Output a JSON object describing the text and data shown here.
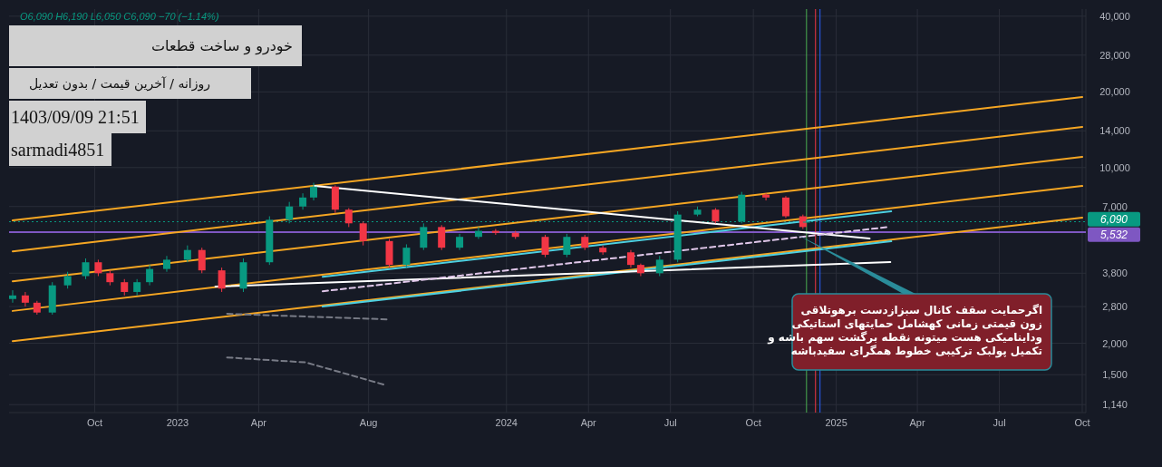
{
  "chart_data": {
    "type": "candlestick",
    "title": "خودرو و ساخت قطعات",
    "subtitle": "روزانه / آخرین قیمت / بدون تعدیل",
    "annotations": [
      "O6,090  H6,190  L6,050  C6,090  −70 (−1.14%)",
      "1403/09/09 21:51",
      "sarmadi4851",
      "اگرحمایت سقف کانال سبزازدست برهوتلاقی",
      "زون قیمتی زمانی کهشامل حمایتهای استاتیکی",
      "وداینامیکی هست میتونه نقطه برگشت سهم باشه و",
      "تکمیل پولبک ترکیبی خطوط همگرای سفیدباشه"
    ],
    "x": [
      "2022-07-02",
      "2022-07-16",
      "2022-07-29",
      "2022-08-15",
      "2022-09-01",
      "2022-09-21",
      "2022-10-05",
      "2022-10-18",
      "2022-11-03",
      "2022-11-17",
      "2022-12-01",
      "2022-12-20",
      "2023-01-12",
      "2023-01-28",
      "2023-02-19",
      "2023-03-15",
      "2023-04-13",
      "2023-05-05",
      "2023-05-20",
      "2023-06-01",
      "2023-06-25",
      "2023-07-10",
      "2023-07-26",
      "2023-08-24",
      "2023-09-12",
      "2023-10-01",
      "2023-10-21",
      "2023-11-10",
      "2023-12-01",
      "2023-12-20",
      "2024-01-11",
      "2024-02-13",
      "2024-03-08",
      "2024-03-28",
      "2024-04-17",
      "2024-05-18",
      "2024-05-29",
      "2024-06-19",
      "2024-07-09",
      "2024-07-31",
      "2024-08-20",
      "2024-09-18",
      "2024-10-15",
      "2024-11-06",
      "2024-11-25",
      "2024-11-29"
    ],
    "ohlc": [
      [
        3000,
        3250,
        2900,
        3100
      ],
      [
        3100,
        3200,
        2800,
        2900
      ],
      [
        2900,
        2950,
        2600,
        2650
      ],
      [
        2650,
        3500,
        2600,
        3400
      ],
      [
        3400,
        3850,
        3300,
        3700
      ],
      [
        3700,
        4350,
        3600,
        4200
      ],
      [
        4200,
        4300,
        3700,
        3800
      ],
      [
        3800,
        3900,
        3400,
        3500
      ],
      [
        3500,
        3600,
        3100,
        3200
      ],
      [
        3200,
        3600,
        3100,
        3500
      ],
      [
        3500,
        4100,
        3400,
        3950
      ],
      [
        3950,
        4450,
        3850,
        4300
      ],
      [
        4300,
        4900,
        4200,
        4700
      ],
      [
        4700,
        4800,
        3800,
        3900
      ],
      [
        3900,
        4000,
        3200,
        3300
      ],
      [
        3300,
        4350,
        3200,
        4200
      ],
      [
        4200,
        6400,
        4100,
        6200
      ],
      [
        6200,
        7300,
        6000,
        7000
      ],
      [
        7000,
        7900,
        6800,
        7600
      ],
      [
        7600,
        8700,
        7400,
        8400
      ],
      [
        8400,
        8500,
        6600,
        6800
      ],
      [
        6800,
        6900,
        5800,
        6000
      ],
      [
        6000,
        6100,
        4900,
        5100
      ],
      [
        5100,
        5200,
        4000,
        4100
      ],
      [
        4100,
        4950,
        4000,
        4800
      ],
      [
        4800,
        6000,
        4700,
        5800
      ],
      [
        5800,
        5900,
        4700,
        4800
      ],
      [
        4800,
        5450,
        4700,
        5300
      ],
      [
        5300,
        5800,
        5200,
        5600
      ],
      [
        5600,
        5700,
        5400,
        5500
      ],
      [
        5500,
        5600,
        5200,
        5300
      ],
      [
        5300,
        5400,
        4400,
        4500
      ],
      [
        4500,
        5450,
        4400,
        5300
      ],
      [
        5300,
        5400,
        4700,
        4800
      ],
      [
        4800,
        4900,
        4500,
        4600
      ],
      [
        4600,
        4700,
        4000,
        4100
      ],
      [
        4100,
        4150,
        3700,
        3800
      ],
      [
        3800,
        4450,
        3700,
        4300
      ],
      [
        4300,
        6700,
        4200,
        6500
      ],
      [
        6500,
        7000,
        6400,
        6800
      ],
      [
        6800,
        6900,
        6000,
        6100
      ],
      [
        6100,
        8000,
        6000,
        7800
      ],
      [
        7800,
        7900,
        7400,
        7600
      ],
      [
        7600,
        7700,
        6300,
        6400
      ],
      [
        6400,
        6500,
        5700,
        5800
      ],
      [
        6090,
        6190,
        6050,
        6090
      ]
    ],
    "series": [
      {
        "type": "line",
        "color": "#f5a623",
        "line_style": "solid",
        "x": [
          "2022-07-02",
          "2025-10-01"
        ],
        "values": [
          6160,
          19080
        ]
      },
      {
        "type": "line",
        "color": "#f5a623",
        "line_style": "solid",
        "x": [
          "2022-07-02",
          "2025-10-01"
        ],
        "values": [
          4640,
          14510
        ]
      },
      {
        "type": "line",
        "color": "#f5a623",
        "line_style": "solid",
        "x": [
          "2022-07-02",
          "2025-10-01"
        ],
        "values": [
          3530,
          11030
        ]
      },
      {
        "type": "line",
        "color": "#f5a623",
        "line_style": "solid",
        "x": [
          "2022-07-02",
          "2025-10-01"
        ],
        "values": [
          2690,
          8450
        ]
      },
      {
        "type": "line",
        "color": "#f5a623",
        "line_style": "solid",
        "x": [
          "2022-07-02",
          "2025-10-01"
        ],
        "values": [
          2040,
          6320
        ]
      },
      {
        "type": "line",
        "color": "#4dd0e1",
        "line_style": "solid",
        "x": [
          "2023-06-11",
          "2025-03-03"
        ],
        "values": [
          3680,
          6700
        ]
      },
      {
        "type": "line",
        "color": "#4dd0e1",
        "line_style": "solid",
        "x": [
          "2023-06-11",
          "2025-03-03"
        ],
        "values": [
          2800,
          5090
        ]
      },
      {
        "type": "line",
        "color": "#ffffff",
        "line_style": "solid",
        "x": [
          "2023-06-02",
          "2025-02-07"
        ],
        "values": [
          8450,
          5220
        ]
      },
      {
        "type": "line",
        "color": "#ffffff",
        "line_style": "solid",
        "x": [
          "2023-02-12",
          "2025-03-02"
        ],
        "values": [
          3360,
          4210
        ]
      },
      {
        "type": "line",
        "color": "#e1c8ea",
        "line_style": "dashed",
        "x": [
          "2023-06-11",
          "2025-03-01"
        ],
        "values": [
          3220,
          5810
        ]
      },
      {
        "type": "line",
        "color": "#787b86",
        "line_style": "dashed",
        "x": [
          "2023-02-25",
          "2023-08-21"
        ],
        "values": [
          2620,
          2490
        ]
      },
      {
        "type": "line",
        "color": "#787b86",
        "line_style": "dashed",
        "x": [
          "2023-02-25",
          "2023-05-23",
          "2023-08-21"
        ],
        "values": [
          1757,
          1680,
          1360
        ]
      }
    ],
    "ref_lines": [
      {
        "axis": "y",
        "value": 5532,
        "label": "5,532",
        "color": "#7e57c2",
        "line_style": "solid"
      },
      {
        "axis": "y",
        "value": 6090,
        "label": "6,090",
        "color": "#089981",
        "line_style": "dotted"
      },
      {
        "axis": "x",
        "value": "2024-11-29",
        "color": "#4caf50",
        "line_style": "solid"
      },
      {
        "axis": "x",
        "value": "2024-12-09",
        "color": "#f23645",
        "line_style": "solid"
      },
      {
        "axis": "x",
        "value": "2024-12-14",
        "color": "#2962ff",
        "line_style": "solid"
      }
    ],
    "log": "y",
    "grid": true,
    "xlim": [
      "2022-06-28",
      "2025-10-05"
    ],
    "ylim": [
      1060,
      42700
    ],
    "xticks": [
      {
        "value": "2022-10-01",
        "label": "Oct"
      },
      {
        "value": "2023-01-01",
        "label": "2023"
      },
      {
        "value": "2023-04-01",
        "label": "Apr"
      },
      {
        "value": "2023-08-01",
        "label": "Aug"
      },
      {
        "value": "2024-01-01",
        "label": "2024"
      },
      {
        "value": "2024-04-01",
        "label": "Apr"
      },
      {
        "value": "2024-07-01",
        "label": "Jul"
      },
      {
        "value": "2024-10-01",
        "label": "Oct"
      },
      {
        "value": "2025-01-01",
        "label": "2025"
      },
      {
        "value": "2025-04-01",
        "label": "Apr"
      },
      {
        "value": "2025-07-01",
        "label": "Jul"
      },
      {
        "value": "2025-10-01",
        "label": "Oct"
      }
    ],
    "yticks": [
      {
        "value": 1140,
        "label": "1,140"
      },
      {
        "value": 1500,
        "label": "1,500"
      },
      {
        "value": 2000,
        "label": "2,000"
      },
      {
        "value": 2800,
        "label": "2,800"
      },
      {
        "value": 3800,
        "label": "3,800"
      },
      {
        "value": 7000,
        "label": "7,000"
      },
      {
        "value": 10000,
        "label": "10,000"
      },
      {
        "value": 14000,
        "label": "14,000"
      },
      {
        "value": 20000,
        "label": "20,000"
      },
      {
        "value": 28000,
        "label": "28,000"
      },
      {
        "value": 40000,
        "label": "40,000"
      }
    ]
  }
}
